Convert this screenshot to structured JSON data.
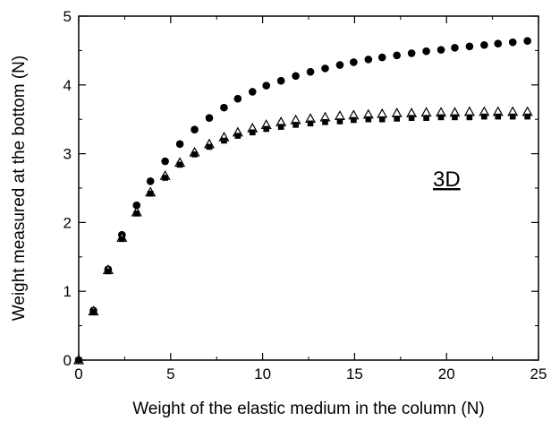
{
  "chart_data": {
    "type": "scatter",
    "title": "",
    "xlabel": "Weight of the elastic medium in the column (N)",
    "ylabel": "Weight measured at the bottom (N)",
    "xlim": [
      0,
      25
    ],
    "ylim": [
      0,
      5
    ],
    "x_ticks": [
      "0",
      "5",
      "10",
      "15",
      "20",
      "25"
    ],
    "y_ticks": [
      "0",
      "1",
      "2",
      "3",
      "4",
      "5"
    ],
    "grid": false,
    "legend": "none",
    "annotations": [
      "3D"
    ],
    "series": [
      {
        "marker": "filled-circle",
        "color": "#000000",
        "x": [
          0,
          0.8,
          1.6,
          2.35,
          3.15,
          3.9,
          4.7,
          5.5,
          6.3,
          7.1,
          7.9,
          8.65,
          9.45,
          10.2,
          11.0,
          11.8,
          12.6,
          13.4,
          14.2,
          14.95,
          15.75,
          16.5,
          17.3,
          18.1,
          18.9,
          19.7,
          20.45,
          21.25,
          22.05,
          22.8,
          23.6,
          24.4
        ],
        "y": [
          0,
          0.72,
          1.32,
          1.82,
          2.25,
          2.6,
          2.89,
          3.14,
          3.35,
          3.52,
          3.67,
          3.8,
          3.9,
          3.99,
          4.06,
          4.13,
          4.19,
          4.24,
          4.29,
          4.33,
          4.37,
          4.4,
          4.43,
          4.46,
          4.49,
          4.51,
          4.54,
          4.56,
          4.58,
          4.6,
          4.62,
          4.64
        ]
      },
      {
        "marker": "open-triangle",
        "color": "#000000",
        "x": [
          0,
          0.8,
          1.6,
          2.35,
          3.15,
          3.9,
          4.7,
          5.5,
          6.3,
          7.1,
          7.9,
          8.65,
          9.45,
          10.2,
          11.0,
          11.8,
          12.6,
          13.4,
          14.2,
          14.95,
          15.75,
          16.5,
          17.3,
          18.1,
          18.9,
          19.7,
          20.45,
          21.25,
          22.05,
          22.8,
          23.6,
          24.4
        ],
        "y": [
          0,
          0.71,
          1.31,
          1.78,
          2.15,
          2.44,
          2.68,
          2.87,
          3.02,
          3.14,
          3.24,
          3.31,
          3.37,
          3.42,
          3.46,
          3.49,
          3.51,
          3.53,
          3.55,
          3.56,
          3.57,
          3.58,
          3.59,
          3.59,
          3.6,
          3.6,
          3.6,
          3.61,
          3.61,
          3.61,
          3.61,
          3.61
        ]
      },
      {
        "marker": "filled-square",
        "color": "#000000",
        "x": [
          0,
          0.8,
          1.6,
          2.35,
          3.15,
          3.9,
          4.7,
          5.5,
          6.3,
          7.1,
          7.9,
          8.65,
          9.45,
          10.2,
          11.0,
          11.8,
          12.6,
          13.4,
          14.2,
          14.95,
          15.75,
          16.5,
          17.3,
          18.1,
          18.9,
          19.7,
          20.45,
          21.25,
          22.05,
          22.8,
          23.6,
          24.4
        ],
        "y": [
          0,
          0.7,
          1.29,
          1.76,
          2.13,
          2.42,
          2.65,
          2.84,
          2.99,
          3.1,
          3.19,
          3.26,
          3.31,
          3.36,
          3.39,
          3.42,
          3.44,
          3.46,
          3.47,
          3.49,
          3.5,
          3.5,
          3.51,
          3.52,
          3.52,
          3.53,
          3.53,
          3.53,
          3.54,
          3.54,
          3.54,
          3.54
        ]
      }
    ]
  }
}
